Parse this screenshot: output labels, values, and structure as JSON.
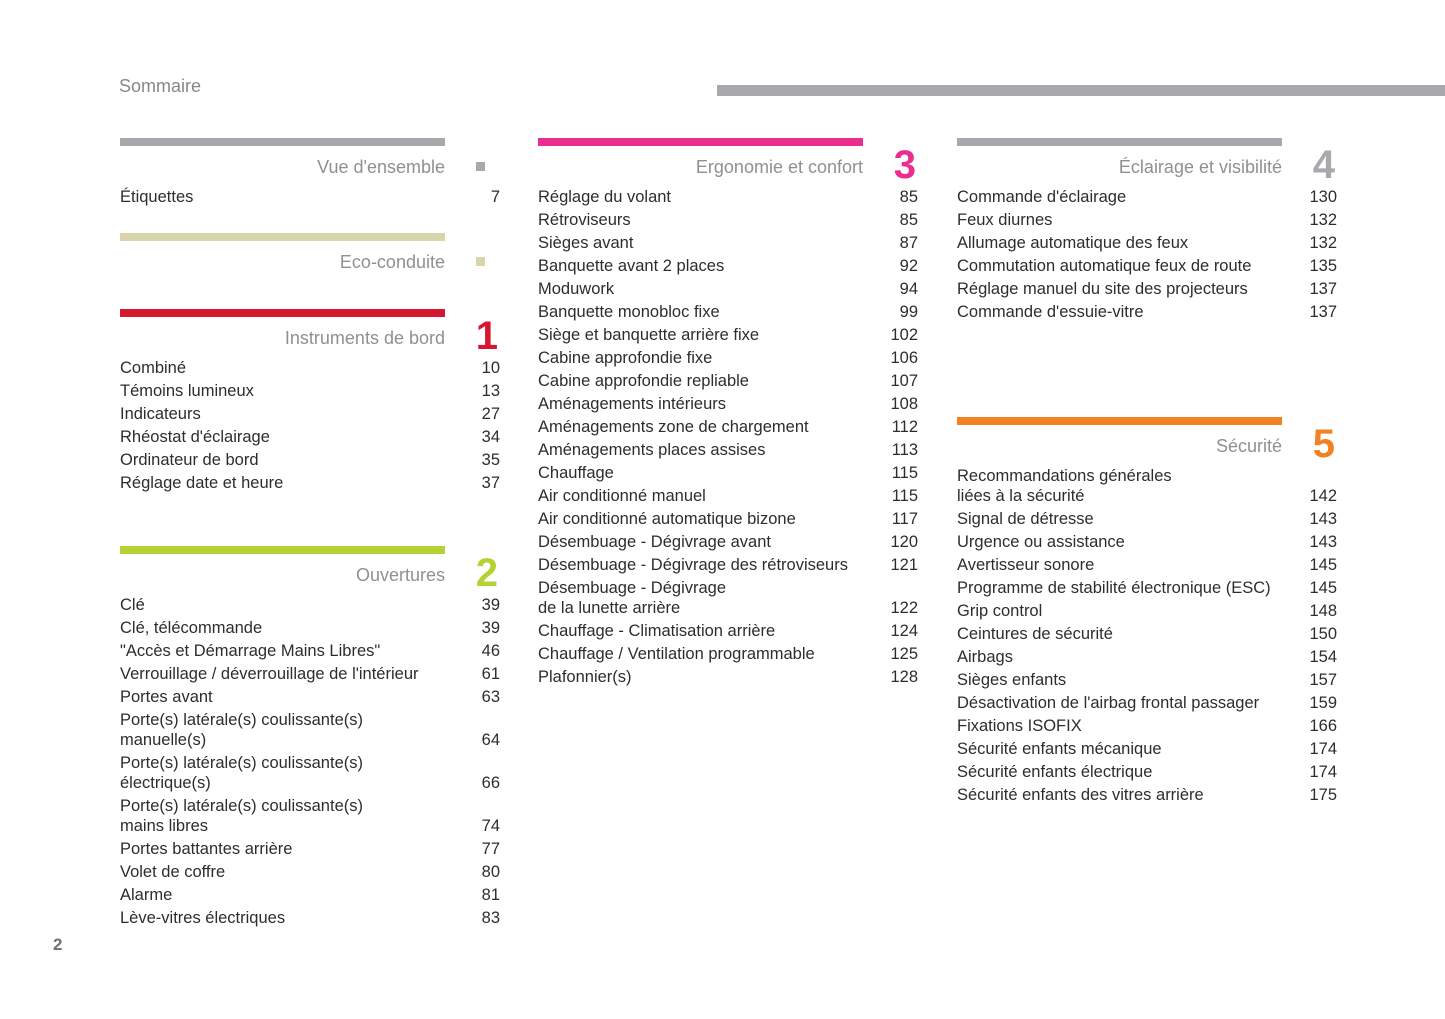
{
  "page": {
    "header_title": "Sommaire",
    "page_number": "2"
  },
  "colors": {
    "header_rule_gray": "#a8a9ad",
    "section_title_gray": "#8e9093",
    "body_text": "#2d2d2e",
    "overview_gray": "#a7a9ac",
    "eco_beige": "#d8d5ab",
    "instruments_red": "#d5182f",
    "ouvertures_green": "#b3d234",
    "ergonomie_pink": "#eb2d90",
    "eclairage_gray": "#a7a9ac",
    "securite_orange": "#f18121"
  },
  "columns": [
    {
      "sections": [
        {
          "title": "Vue d'ensemble",
          "marker": "square",
          "items": [
            {
              "label": "Étiquettes",
              "page": "7"
            }
          ]
        },
        {
          "title": "Eco-conduite",
          "marker": "square",
          "items": []
        },
        {
          "title": "Instruments de bord",
          "number": "1",
          "items": [
            {
              "label": "Combiné",
              "page": "10"
            },
            {
              "label": "Témoins lumineux",
              "page": "13"
            },
            {
              "label": "Indicateurs",
              "page": "27"
            },
            {
              "label": "Rhéostat d'éclairage",
              "page": "34"
            },
            {
              "label": "Ordinateur de bord",
              "page": "35"
            },
            {
              "label": "Réglage date et heure",
              "page": "37"
            }
          ]
        },
        {
          "title": "Ouvertures",
          "number": "2",
          "items": [
            {
              "label": "Clé",
              "page": "39"
            },
            {
              "label": "Clé, télécommande",
              "page": "39"
            },
            {
              "label": "\"Accès et Démarrage Mains Libres\"",
              "page": "46"
            },
            {
              "label": "Verrouillage / déverrouillage de l'intérieur",
              "page": "61"
            },
            {
              "label": "Portes avant",
              "page": "63"
            },
            {
              "label": "Porte(s) latérale(s) coulissante(s)",
              "label2": "manuelle(s)",
              "page": "64"
            },
            {
              "label": "Porte(s) latérale(s) coulissante(s)",
              "label2": "électrique(s)",
              "page": "66"
            },
            {
              "label": "Porte(s) latérale(s) coulissante(s)",
              "label2": "mains libres",
              "page": "74"
            },
            {
              "label": "Portes battantes arrière",
              "page": "77"
            },
            {
              "label": "Volet de coffre",
              "page": "80"
            },
            {
              "label": "Alarme",
              "page": "81"
            },
            {
              "label": "Lève-vitres électriques",
              "page": "83"
            }
          ]
        }
      ]
    },
    {
      "sections": [
        {
          "title": "Ergonomie et confort",
          "number": "3",
          "items": [
            {
              "label": "Réglage du volant",
              "page": "85"
            },
            {
              "label": "Rétroviseurs",
              "page": "85"
            },
            {
              "label": "Sièges avant",
              "page": "87"
            },
            {
              "label": "Banquette avant 2 places",
              "page": "92"
            },
            {
              "label": "Moduwork",
              "page": "94"
            },
            {
              "label": "Banquette monobloc fixe",
              "page": "99"
            },
            {
              "label": "Siège et banquette arrière fixe",
              "page": "102"
            },
            {
              "label": "Cabine approfondie fixe",
              "page": "106"
            },
            {
              "label": "Cabine approfondie repliable",
              "page": "107"
            },
            {
              "label": "Aménagements intérieurs",
              "page": "108"
            },
            {
              "label": "Aménagements zone de chargement",
              "page": "112"
            },
            {
              "label": "Aménagements places assises",
              "page": "113"
            },
            {
              "label": "Chauffage",
              "page": "115"
            },
            {
              "label": "Air conditionné manuel",
              "page": "115"
            },
            {
              "label": "Air conditionné automatique bizone",
              "page": "117"
            },
            {
              "label": "Désembuage - Dégivrage avant",
              "page": "120"
            },
            {
              "label": "Désembuage - Dégivrage des rétroviseurs",
              "page": "121"
            },
            {
              "label": "Désembuage - Dégivrage",
              "label2": "de la lunette arrière",
              "page": "122"
            },
            {
              "label": "Chauffage - Climatisation arrière",
              "page": "124"
            },
            {
              "label": "Chauffage / Ventilation programmable",
              "page": "125"
            },
            {
              "label": "Plafonnier(s)",
              "page": "128"
            }
          ]
        }
      ]
    },
    {
      "sections": [
        {
          "title": "Éclairage et visibilité",
          "number": "4",
          "items": [
            {
              "label": "Commande d'éclairage",
              "page": "130"
            },
            {
              "label": "Feux diurnes",
              "page": "132"
            },
            {
              "label": "Allumage automatique des feux",
              "page": "132"
            },
            {
              "label": "Commutation automatique feux de route",
              "page": "135"
            },
            {
              "label": "Réglage manuel du site des projecteurs",
              "page": "137"
            },
            {
              "label": "Commande d'essuie-vitre",
              "page": "137"
            }
          ]
        },
        {
          "title": "Sécurité",
          "number": "5",
          "items": [
            {
              "label": "Recommandations générales",
              "label2": "liées à la sécurité",
              "page": "142"
            },
            {
              "label": "Signal de détresse",
              "page": "143"
            },
            {
              "label": "Urgence ou assistance",
              "page": "143"
            },
            {
              "label": "Avertisseur sonore",
              "page": "145"
            },
            {
              "label": "Programme de stabilité électronique (ESC)",
              "page": "145"
            },
            {
              "label": "Grip control",
              "page": "148"
            },
            {
              "label": "Ceintures de sécurité",
              "page": "150"
            },
            {
              "label": "Airbags",
              "page": "154"
            },
            {
              "label": "Sièges enfants",
              "page": "157"
            },
            {
              "label": "Désactivation de l'airbag frontal passager",
              "page": "159"
            },
            {
              "label": "Fixations ISOFIX",
              "page": "166"
            },
            {
              "label": "Sécurité enfants mécanique",
              "page": "174"
            },
            {
              "label": "Sécurité enfants électrique",
              "page": "174"
            },
            {
              "label": "Sécurité enfants des vitres arrière",
              "page": "175"
            }
          ]
        }
      ]
    }
  ]
}
